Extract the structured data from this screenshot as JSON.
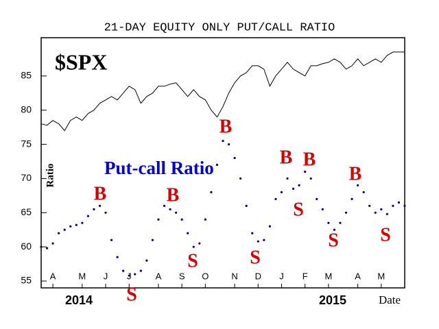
{
  "chart_data": {
    "type": "line",
    "title": "21-DAY EQUITY ONLY PUT/CALL RATIO",
    "y_label": "Ratio",
    "annotations": [
      "$SPX",
      "Put-call Ratio",
      "2014",
      "2015",
      "Date"
    ],
    "signals": [
      "B",
      "S",
      "B",
      "S",
      "B",
      "S",
      "B",
      "S",
      "B",
      "S",
      "B",
      "S"
    ],
    "categories": [
      null,
      null,
      "A",
      null,
      null,
      null,
      null,
      "M",
      null,
      null,
      null,
      "J",
      null,
      null,
      null,
      "J",
      null,
      null,
      null,
      null,
      "A",
      null,
      null,
      null,
      "S",
      null,
      null,
      null,
      "O",
      null,
      null,
      null,
      null,
      "N",
      null,
      null,
      null,
      "D",
      null,
      null,
      null,
      "J",
      null,
      null,
      null,
      "F",
      null,
      null,
      null,
      "M",
      null,
      null,
      null,
      null,
      "A",
      null,
      null,
      null,
      "M",
      null,
      null,
      null,
      null
    ],
    "series": [
      {
        "name": "$SPX",
        "color": "#000000",
        "values": [
          78,
          77.8,
          78.5,
          78,
          77,
          78.5,
          79,
          78.5,
          79.5,
          80,
          81,
          81.5,
          82,
          81.5,
          82.5,
          83.5,
          83,
          81,
          82,
          82.5,
          83.5,
          83.5,
          83.8,
          84,
          83,
          82,
          83,
          82,
          81.5,
          80,
          79,
          80.5,
          82.5,
          84,
          85,
          85.5,
          86.5,
          86.5,
          86,
          83.5,
          85,
          86,
          87,
          86,
          85.5,
          85,
          86.5,
          86.5,
          86.8,
          87,
          87.5,
          87,
          86,
          86.5,
          87.5,
          86.5,
          87,
          87.5,
          87,
          88,
          88.5,
          88.5,
          88.5
        ]
      },
      {
        "name": "Put-call Ratio",
        "color": "#000080",
        "values": [
          60,
          59.8,
          60.5,
          62,
          62.5,
          63,
          63.2,
          63.5,
          64.5,
          65.5,
          66,
          65,
          61,
          58.5,
          56.5,
          55.8,
          56,
          56.5,
          58,
          61,
          64,
          66,
          65.5,
          65,
          64,
          62,
          60,
          60.5,
          64,
          68,
          72,
          75.5,
          75,
          73,
          70,
          66,
          62,
          60.8,
          61,
          63,
          67,
          68,
          70,
          68.5,
          69,
          71,
          70,
          67,
          65.5,
          63.5,
          62.5,
          63.5,
          65,
          67,
          69,
          68,
          66,
          65,
          65.5,
          64.8,
          66,
          66.5,
          66
        ]
      }
    ],
    "ylim": [
      54,
      90.6
    ],
    "yticks": [
      55,
      60,
      65,
      70,
      75,
      80,
      85
    ],
    "grid": false
  }
}
